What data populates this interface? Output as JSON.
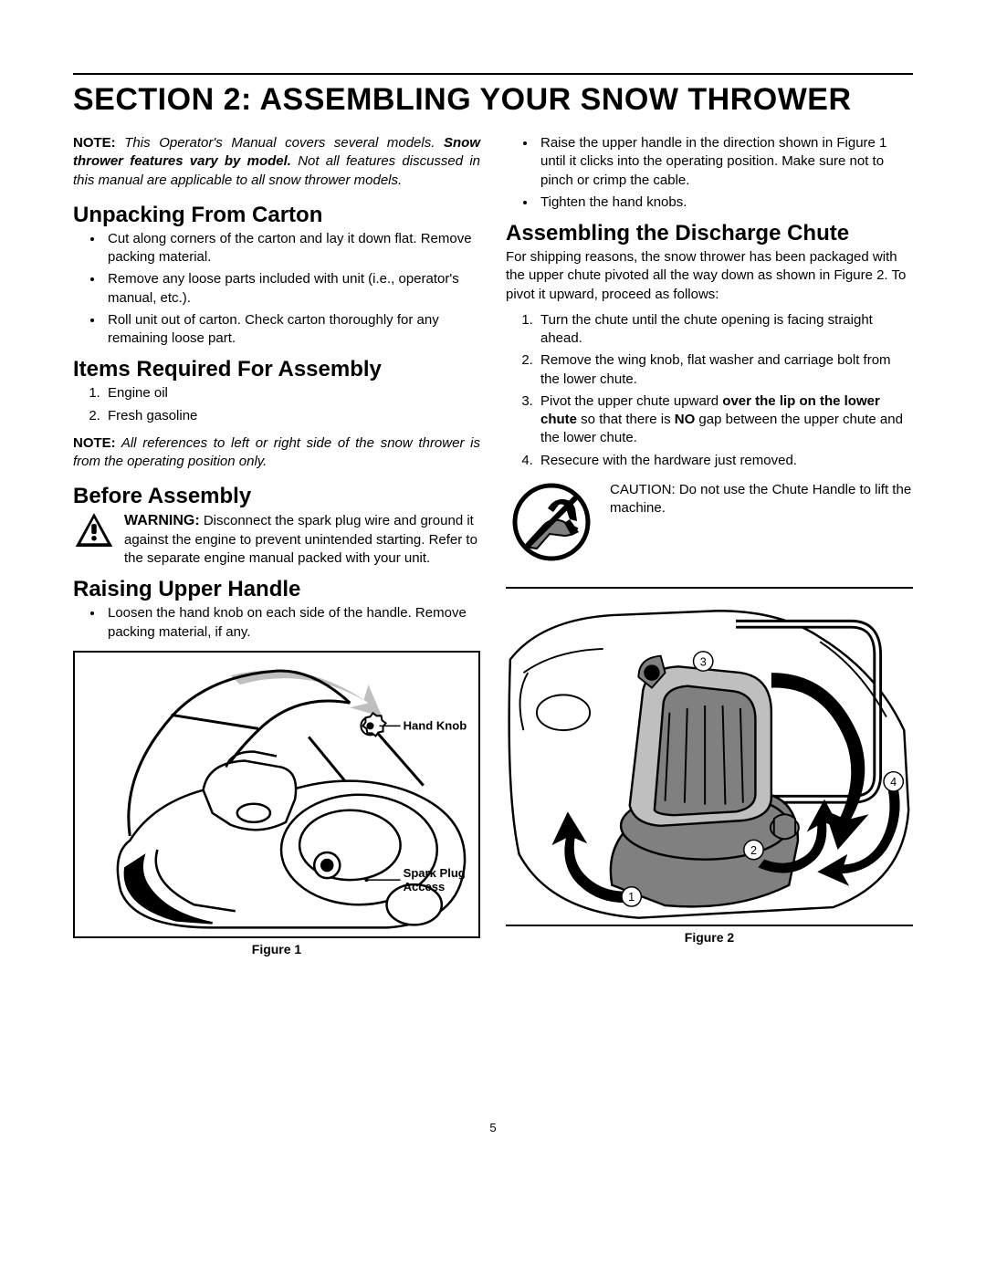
{
  "section_title": "SECTION 2: ASSEMBLING YOUR SNOW THROWER",
  "note1": {
    "label": "NOTE:",
    "pre": " This Operator's Manual covers several models. ",
    "bold": "Snow thrower features vary by model.",
    "post": " Not all features discussed in this manual are applicable to all snow thrower models."
  },
  "left": {
    "h_unpacking": "Unpacking From Carton",
    "unpacking_items": [
      "Cut along corners of the carton and lay it down flat. Remove packing material.",
      "Remove any loose parts included with unit (i.e., operator's manual, etc.).",
      "Roll unit out of carton. Check carton thoroughly for any remaining loose part."
    ],
    "h_items": "Items Required For Assembly",
    "items_list": [
      "Engine oil",
      "Fresh gasoline"
    ],
    "note2": {
      "label": "NOTE:",
      "body": " All references to left or right side of the snow thrower is from the operating position only."
    },
    "h_before": "Before Assembly",
    "warning": {
      "label": "WARNING:",
      "body": " Disconnect the spark plug wire and ground it against the engine to prevent unintended starting. Refer to the separate engine manual packed with your unit."
    },
    "h_raising": "Raising Upper Handle",
    "raising_items": [
      "Loosen the hand knob on each side of the handle. Remove packing material, if any."
    ],
    "fig1": {
      "caption": "Figure 1",
      "label_handknob": "Hand Knob",
      "label_sparkplug1": "Spark Plug",
      "label_sparkplug2": "Access"
    }
  },
  "right": {
    "top_items": [
      "Raise the upper handle in the direction shown in Figure 1 until it clicks into the operating position. Make sure not to pinch or crimp the cable.",
      "Tighten the hand knobs."
    ],
    "h_chute": "Assembling the Discharge Chute",
    "chute_intro": "For shipping reasons, the snow thrower has been packaged with the upper chute pivoted all the way down as shown in Figure 2. To pivot it upward, proceed as follows:",
    "chute_steps_html": [
      "Turn the chute until the chute opening is facing straight ahead.",
      "Remove the wing knob, flat washer and carriage bolt from the lower chute.",
      "Pivot the upper chute upward <b>over the lip on the lower chute</b> so that there is <b>NO</b> gap between the upper chute and the lower chute.",
      "Resecure with the hardware just removed."
    ],
    "caution": "CAUTION: Do not use the Chute Handle to lift the machine.",
    "fig2_caption": "Figure 2"
  },
  "page_number": "5",
  "colors": {
    "ink": "#000000",
    "grey_fill": "#808080",
    "light_grey": "#bfbfbf",
    "bg": "#ffffff"
  }
}
